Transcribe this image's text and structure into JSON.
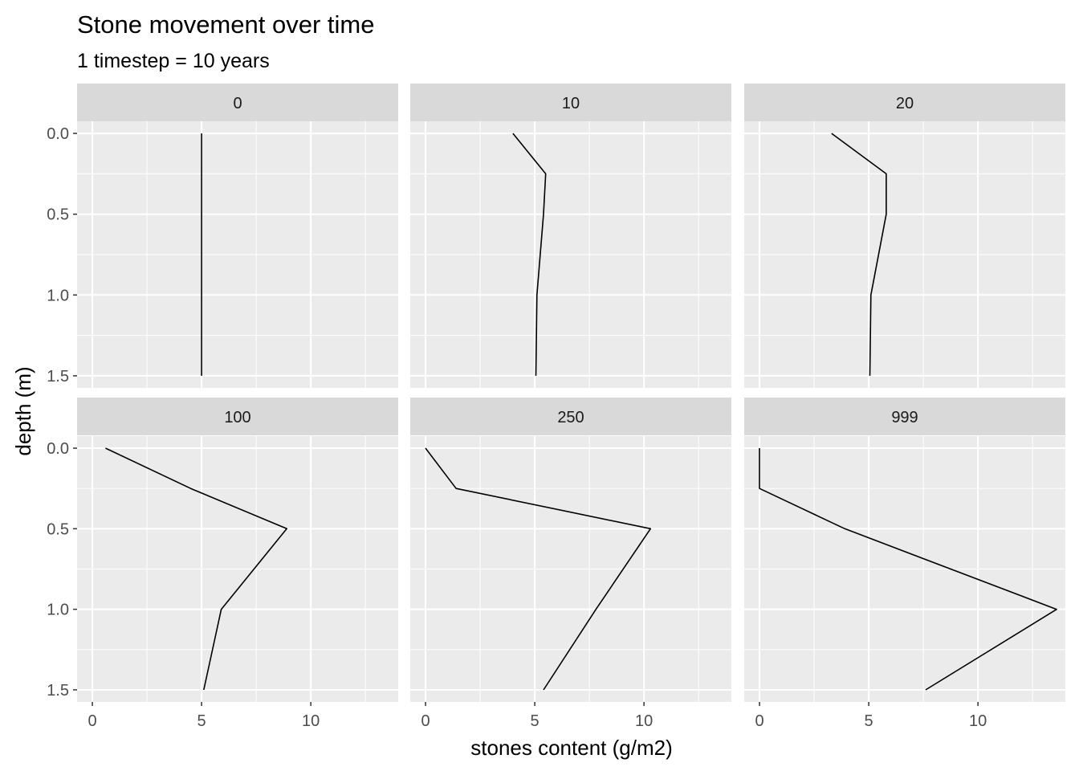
{
  "chart_data": {
    "type": "line",
    "title": "Stone movement over time",
    "subtitle": "1 timestep = 10 years",
    "xlabel": "stones content (g/m2)",
    "ylabel": "depth (m)",
    "xlim": [
      -0.7,
      14.0
    ],
    "ylim": [
      -0.075,
      1.575
    ],
    "y_reversed": true,
    "grid": true,
    "x_ticks": [
      "0",
      "5",
      "10"
    ],
    "x_tick_values": [
      0,
      5,
      10
    ],
    "y_ticks": [
      "0.0",
      "0.5",
      "1.0",
      "1.5"
    ],
    "y_tick_values": [
      0,
      0.5,
      1.0,
      1.5
    ],
    "facets": [
      {
        "label": "0",
        "x": [
          5.0,
          5.0,
          5.0,
          5.0,
          5.0
        ],
        "depth": [
          0,
          0.25,
          0.5,
          1.0,
          1.5
        ]
      },
      {
        "label": "10",
        "x": [
          4.0,
          5.5,
          5.4,
          5.1,
          5.05
        ],
        "depth": [
          0,
          0.25,
          0.5,
          1.0,
          1.5
        ]
      },
      {
        "label": "20",
        "x": [
          3.3,
          5.8,
          5.8,
          5.1,
          5.05
        ],
        "depth": [
          0,
          0.25,
          0.5,
          1.0,
          1.5
        ]
      },
      {
        "label": "100",
        "x": [
          0.6,
          4.5,
          8.9,
          5.9,
          5.1
        ],
        "depth": [
          0,
          0.25,
          0.5,
          1.0,
          1.5
        ]
      },
      {
        "label": "250",
        "x": [
          0.0,
          1.4,
          10.3,
          7.8,
          5.4
        ],
        "depth": [
          0,
          0.25,
          0.5,
          1.0,
          1.5
        ]
      },
      {
        "label": "999",
        "x": [
          0.0,
          0.0,
          3.9,
          13.6,
          7.6
        ],
        "depth": [
          0,
          0.25,
          0.5,
          1.0,
          1.5
        ]
      }
    ]
  }
}
